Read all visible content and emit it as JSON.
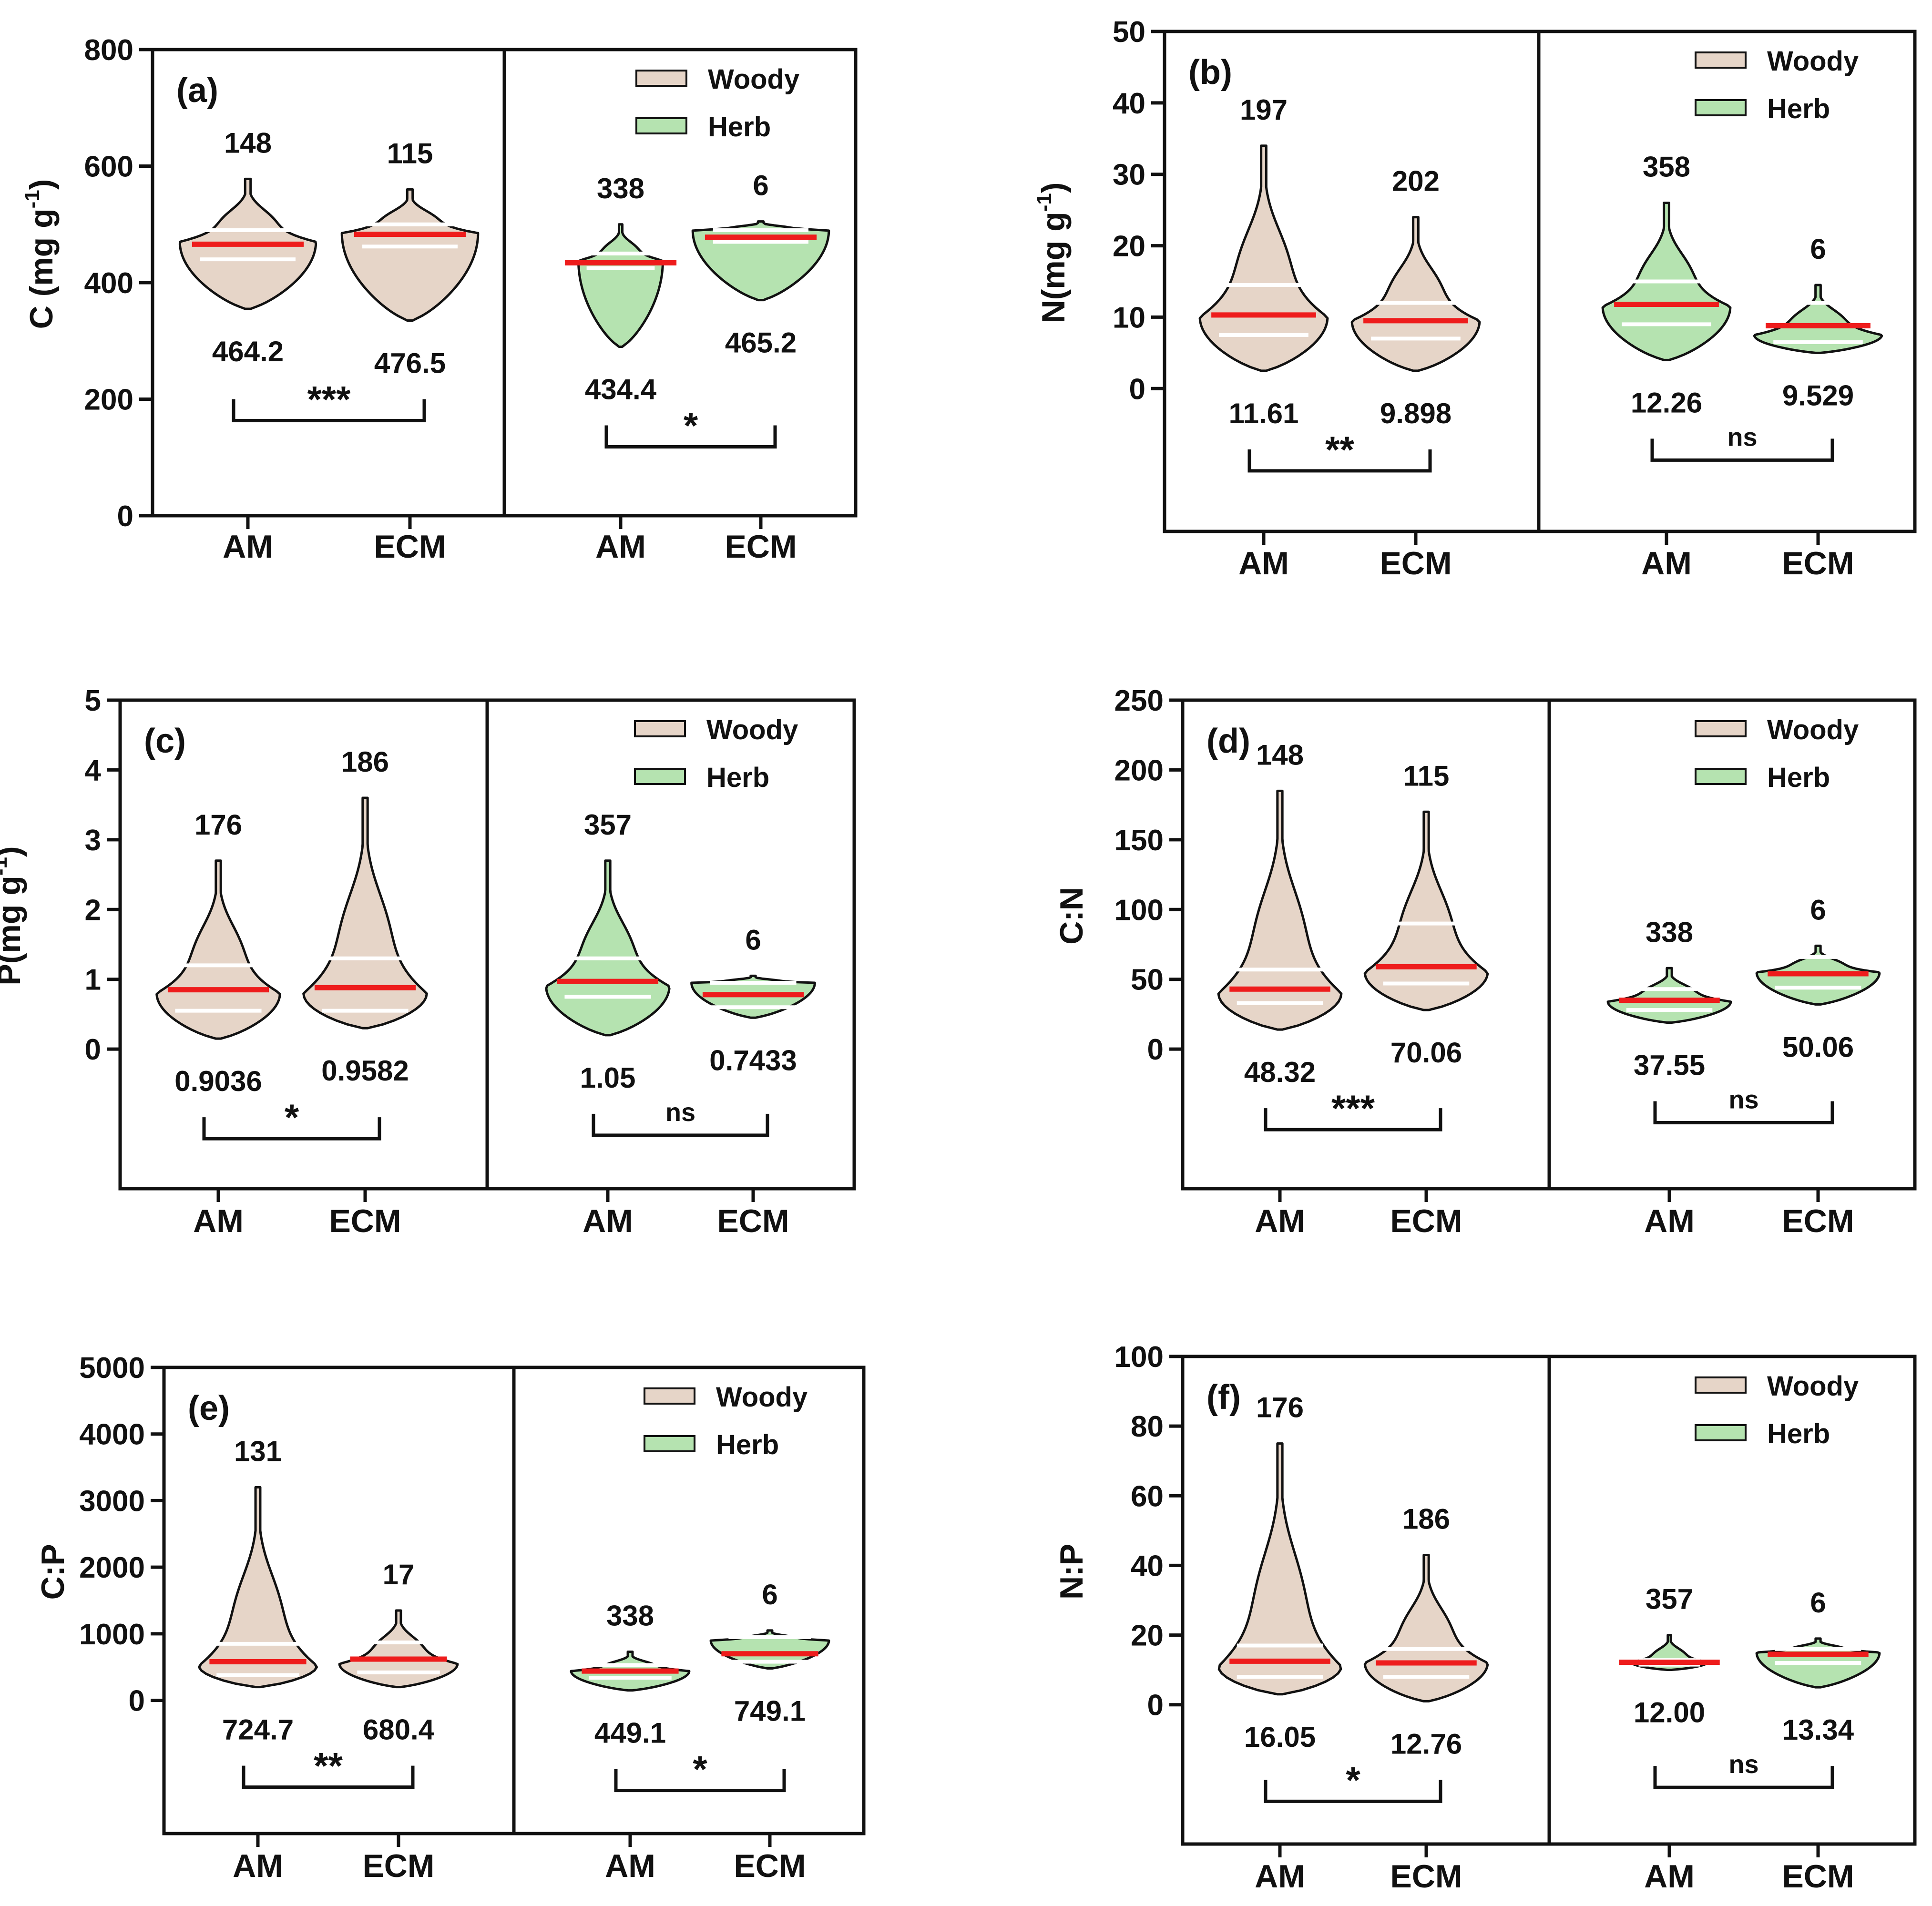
{
  "legend": {
    "entries": [
      {
        "label": "Woody",
        "color": "#e6d5c8"
      },
      {
        "label": "Herb",
        "color": "#b5e3b0"
      }
    ]
  },
  "colors": {
    "woody_fill": "#e6d5c8",
    "herb_fill": "#b5e3b0",
    "mean_line": "#ee1c1c",
    "quartile_line": "#ffffff",
    "frame": "#111111"
  },
  "chart_data": [
    {
      "type": "violin",
      "panel_label": "(a)",
      "ylabel": "C (mg g",
      "ylabel_sup": "-1",
      "ylabel_close": ")",
      "ylim": [
        0,
        800
      ],
      "yticks": [
        0,
        200,
        400,
        600,
        800
      ],
      "yticklabels": [
        "0",
        "200",
        "400",
        "600",
        "800"
      ],
      "categories": [
        "AM",
        "ECM"
      ],
      "groups": [
        {
          "name": "Woody",
          "significance": "***",
          "violins": [
            {
              "category": "AM",
              "n": "148",
              "mean_label": "464.2",
              "min": 355,
              "max": 578,
              "median": 466,
              "q1": 440,
              "q3": 490,
              "peak": 470,
              "spread": "wide"
            },
            {
              "category": "ECM",
              "n": "115",
              "mean_label": "476.5",
              "min": 335,
              "max": 560,
              "median": 483,
              "q1": 462,
              "q3": 500,
              "peak": 485,
              "spread": "wide"
            }
          ]
        },
        {
          "name": "Herb",
          "significance": "*",
          "violins": [
            {
              "category": "AM",
              "n": "338",
              "mean_label": "434.4",
              "min": 290,
              "max": 500,
              "median": 434,
              "q1": 425,
              "q3": 450,
              "peak": 438,
              "spread": "narrow"
            },
            {
              "category": "ECM",
              "n": "6",
              "mean_label": "465.2",
              "min": 370,
              "max": 505,
              "median": 478,
              "q1": 470,
              "q3": 490,
              "peak": 490,
              "spread": "wide"
            }
          ]
        }
      ]
    },
    {
      "type": "violin",
      "panel_label": "(b)",
      "ylabel": "N(mg g",
      "ylabel_sup": "-1",
      "ylabel_close": ")",
      "ylim": [
        -20,
        50
      ],
      "yticks": [
        0,
        10,
        20,
        30,
        40,
        50
      ],
      "yticklabels": [
        "0",
        "10",
        "20",
        "30",
        "40",
        "50"
      ],
      "categories": [
        "AM",
        "ECM"
      ],
      "groups": [
        {
          "name": "Woody",
          "significance": "**",
          "violins": [
            {
              "category": "AM",
              "n": "197",
              "mean_label": "11.61",
              "min": 2.5,
              "max": 34,
              "median": 10.3,
              "q1": 7.5,
              "q3": 14.5,
              "peak": 10,
              "spread": "wide"
            },
            {
              "category": "ECM",
              "n": "202",
              "mean_label": "9.898",
              "min": 2.5,
              "max": 24,
              "median": 9.5,
              "q1": 7,
              "q3": 12,
              "peak": 9.5,
              "spread": "wide"
            }
          ]
        },
        {
          "name": "Herb",
          "significance": "ns",
          "violins": [
            {
              "category": "AM",
              "n": "358",
              "mean_label": "12.26",
              "min": 4,
              "max": 26,
              "median": 11.8,
              "q1": 9,
              "q3": 15,
              "peak": 11.5,
              "spread": "wide"
            },
            {
              "category": "ECM",
              "n": "6",
              "mean_label": "9.529",
              "min": 5,
              "max": 14.5,
              "median": 8.8,
              "q1": 6.5,
              "q3": 12,
              "peak": 7.5,
              "spread": "wide"
            }
          ]
        }
      ]
    },
    {
      "type": "violin",
      "panel_label": "(c)",
      "ylabel": "P(mg g",
      "ylabel_sup": "-1",
      "ylabel_close": ")",
      "ylim": [
        -2,
        5
      ],
      "yticks": [
        0,
        1,
        2,
        3,
        4,
        5
      ],
      "yticklabels": [
        "0",
        "1",
        "2",
        "3",
        "4",
        "5"
      ],
      "categories": [
        "AM",
        "ECM"
      ],
      "groups": [
        {
          "name": "Woody",
          "significance": "*",
          "violins": [
            {
              "category": "AM",
              "n": "176",
              "mean_label": "0.9036",
              "min": 0.15,
              "max": 2.7,
              "median": 0.85,
              "q1": 0.55,
              "q3": 1.2,
              "peak": 0.8,
              "spread": "wide"
            },
            {
              "category": "ECM",
              "n": "186",
              "mean_label": "0.9582",
              "min": 0.3,
              "max": 3.6,
              "median": 0.88,
              "q1": 0.55,
              "q3": 1.3,
              "peak": 0.8,
              "spread": "wide"
            }
          ]
        },
        {
          "name": "Herb",
          "significance": "ns",
          "violins": [
            {
              "category": "AM",
              "n": "357",
              "mean_label": "1.05",
              "min": 0.2,
              "max": 2.7,
              "median": 0.97,
              "q1": 0.75,
              "q3": 1.3,
              "peak": 0.9,
              "spread": "wide"
            },
            {
              "category": "ECM",
              "n": "6",
              "mean_label": "0.7433",
              "min": 0.45,
              "max": 1.05,
              "median": 0.78,
              "q1": 0.6,
              "q3": 0.95,
              "peak": 0.95,
              "spread": "wide"
            }
          ]
        }
      ]
    },
    {
      "type": "violin",
      "panel_label": "(d)",
      "ylabel": "C:N",
      "ylabel_sup": "",
      "ylabel_close": "",
      "ylim": [
        -100,
        250
      ],
      "yticks": [
        0,
        50,
        100,
        150,
        200,
        250
      ],
      "yticklabels": [
        "0",
        "50",
        "100",
        "150",
        "200",
        "250"
      ],
      "categories": [
        "AM",
        "ECM"
      ],
      "groups": [
        {
          "name": "Woody",
          "significance": "***",
          "violins": [
            {
              "category": "AM",
              "n": "148",
              "mean_label": "48.32",
              "min": 14,
              "max": 185,
              "median": 43,
              "q1": 33,
              "q3": 57,
              "peak": 40,
              "spread": "wide"
            },
            {
              "category": "ECM",
              "n": "115",
              "mean_label": "70.06",
              "min": 28,
              "max": 170,
              "median": 59,
              "q1": 47,
              "q3": 90,
              "peak": 55,
              "spread": "wide"
            }
          ]
        },
        {
          "name": "Herb",
          "significance": "ns",
          "violins": [
            {
              "category": "AM",
              "n": "338",
              "mean_label": "37.55",
              "min": 19,
              "max": 58,
              "median": 35,
              "q1": 28,
              "q3": 43,
              "peak": 34,
              "spread": "wide"
            },
            {
              "category": "ECM",
              "n": "6",
              "mean_label": "50.06",
              "min": 32,
              "max": 74,
              "median": 54,
              "q1": 44,
              "q3": 66,
              "peak": 55,
              "spread": "wide"
            }
          ]
        }
      ]
    },
    {
      "type": "violin",
      "panel_label": "(e)",
      "ylabel": "C:P",
      "ylabel_sup": "",
      "ylabel_close": "",
      "ylim": [
        -2000,
        5000
      ],
      "yticks": [
        0,
        1000,
        2000,
        3000,
        4000,
        5000
      ],
      "yticklabels": [
        "0",
        "1000",
        "2000",
        "3000",
        "4000",
        "5000"
      ],
      "categories": [
        "AM",
        "ECM"
      ],
      "groups": [
        {
          "name": "Woody",
          "significance": "**",
          "violins": [
            {
              "category": "AM",
              "n": "131",
              "mean_label": "724.7",
              "min": 200,
              "max": 3200,
              "median": 580,
              "q1": 380,
              "q3": 850,
              "peak": 520,
              "spread": "wide"
            },
            {
              "category": "ECM",
              "n": "17",
              "mean_label": "680.4",
              "min": 200,
              "max": 1350,
              "median": 620,
              "q1": 420,
              "q3": 870,
              "peak": 550,
              "spread": "wide"
            }
          ]
        },
        {
          "name": "Herb",
          "significance": "*",
          "violins": [
            {
              "category": "AM",
              "n": "338",
              "mean_label": "449.1",
              "min": 150,
              "max": 730,
              "median": 440,
              "q1": 340,
              "q3": 530,
              "peak": 440,
              "spread": "wide"
            },
            {
              "category": "ECM",
              "n": "6",
              "mean_label": "749.1",
              "min": 480,
              "max": 1050,
              "median": 700,
              "q1": 580,
              "q3": 950,
              "peak": 900,
              "spread": "wide"
            }
          ]
        }
      ]
    },
    {
      "type": "violin",
      "panel_label": "(f)",
      "ylabel": "N:P",
      "ylabel_sup": "",
      "ylabel_close": "",
      "ylim": [
        -40,
        100
      ],
      "yticks": [
        0,
        20,
        40,
        60,
        80,
        100
      ],
      "yticklabels": [
        "0",
        "20",
        "40",
        "60",
        "80",
        "100"
      ],
      "categories": [
        "AM",
        "ECM"
      ],
      "groups": [
        {
          "name": "Woody",
          "significance": "*",
          "violins": [
            {
              "category": "AM",
              "n": "176",
              "mean_label": "16.05",
              "min": 3,
              "max": 75,
              "median": 12.5,
              "q1": 8,
              "q3": 17,
              "peak": 11,
              "spread": "wide"
            },
            {
              "category": "ECM",
              "n": "186",
              "mean_label": "12.76",
              "min": 1,
              "max": 43,
              "median": 12,
              "q1": 8,
              "q3": 16,
              "peak": 12,
              "spread": "wide"
            }
          ]
        },
        {
          "name": "Herb",
          "significance": "ns",
          "violins": [
            {
              "category": "AM",
              "n": "357",
              "mean_label": "12.00",
              "min": 10,
              "max": 20,
              "median": 12.2,
              "q1": 11.5,
              "q3": 12.8,
              "peak": 12.2,
              "spread": "narrow"
            },
            {
              "category": "ECM",
              "n": "6",
              "mean_label": "13.34",
              "min": 5,
              "max": 19,
              "median": 14.5,
              "q1": 12,
              "q3": 16,
              "peak": 15,
              "spread": "wide"
            }
          ]
        }
      ]
    }
  ]
}
